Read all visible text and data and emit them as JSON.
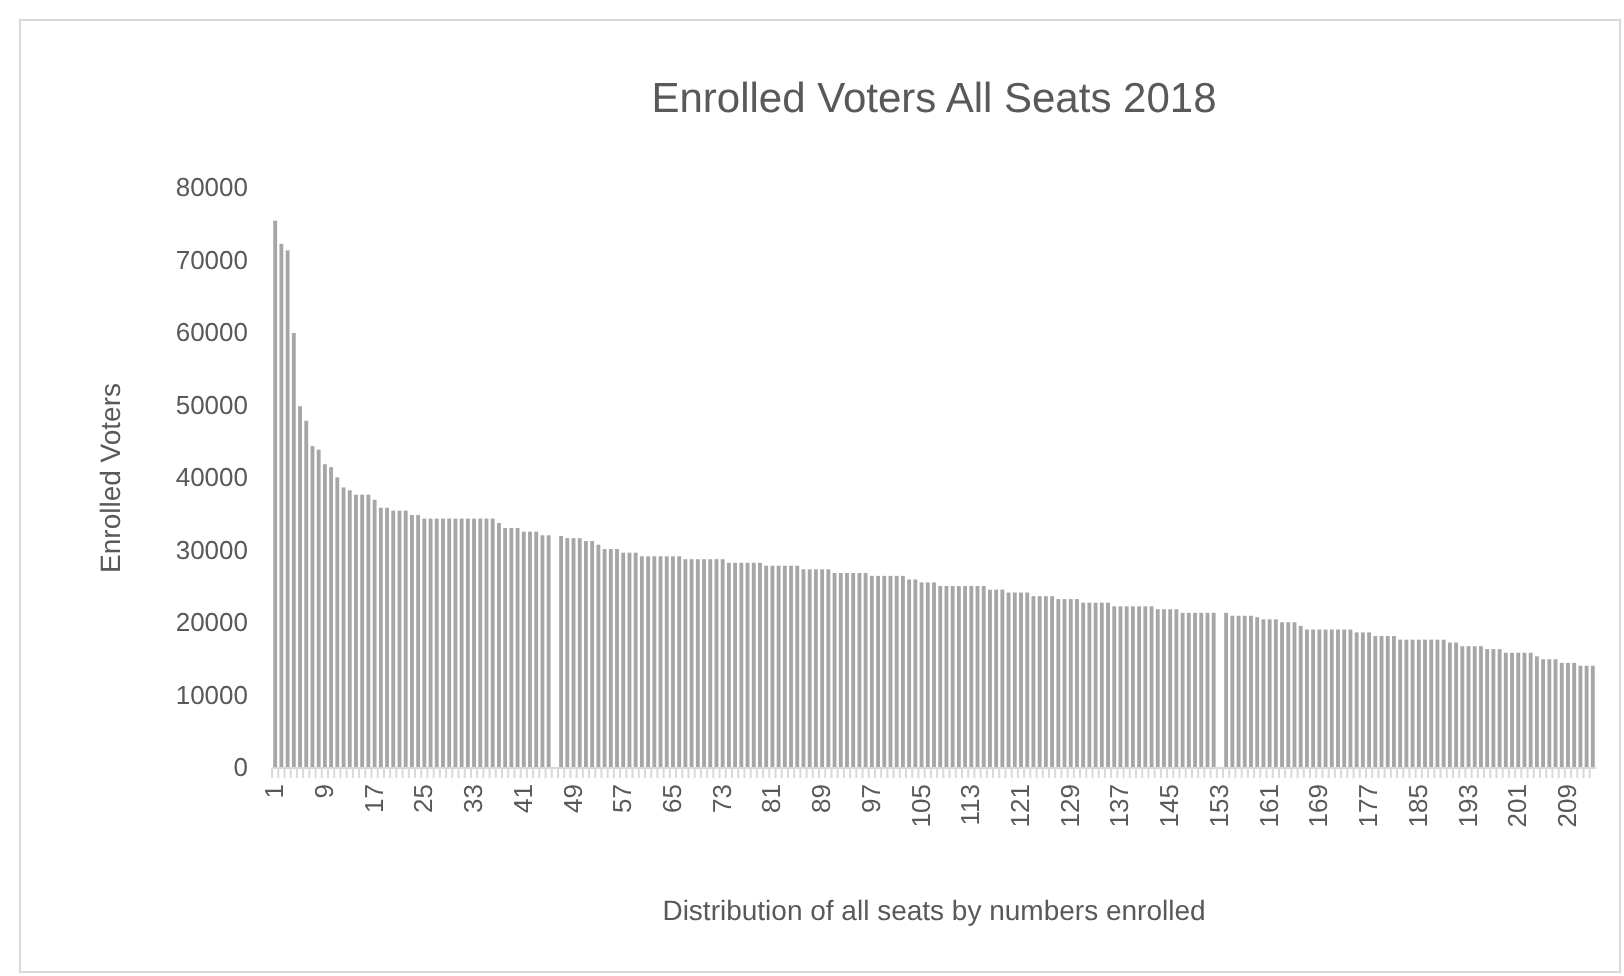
{
  "chart_data": {
    "type": "bar",
    "title": "Enrolled Voters All Seats 2018",
    "xlabel": "Distribution of all seats by numbers enrolled",
    "ylabel": "Enrolled Voters",
    "categories": [
      "1",
      null,
      null,
      null,
      null,
      null,
      null,
      null,
      "9",
      null,
      null,
      null,
      null,
      null,
      null,
      null,
      "17",
      null,
      null,
      null,
      null,
      null,
      null,
      null,
      "25",
      null,
      null,
      null,
      null,
      null,
      null,
      null,
      "33",
      null,
      null,
      null,
      null,
      null,
      null,
      null,
      "41",
      null,
      null,
      null,
      null,
      null,
      null,
      null,
      "49",
      null,
      null,
      null,
      null,
      null,
      null,
      null,
      "57",
      null,
      null,
      null,
      null,
      null,
      null,
      null,
      "65",
      null,
      null,
      null,
      null,
      null,
      null,
      null,
      "73",
      null,
      null,
      null,
      null,
      null,
      null,
      null,
      "81",
      null,
      null,
      null,
      null,
      null,
      null,
      null,
      "89",
      null,
      null,
      null,
      null,
      null,
      null,
      null,
      "97",
      null,
      null,
      null,
      null,
      null,
      null,
      null,
      "105",
      null,
      null,
      null,
      null,
      null,
      null,
      null,
      "113",
      null,
      null,
      null,
      null,
      null,
      null,
      null,
      "121",
      null,
      null,
      null,
      null,
      null,
      null,
      null,
      "129",
      null,
      null,
      null,
      null,
      null,
      null,
      null,
      "137",
      null,
      null,
      null,
      null,
      null,
      null,
      null,
      "145",
      null,
      null,
      null,
      null,
      null,
      null,
      null,
      "153",
      null,
      null,
      null,
      null,
      null,
      null,
      null,
      "161",
      null,
      null,
      null,
      null,
      null,
      null,
      null,
      "169",
      null,
      null,
      null,
      null,
      null,
      null,
      null,
      "177",
      null,
      null,
      null,
      null,
      null,
      null,
      null,
      "185",
      null,
      null,
      null,
      null,
      null,
      null,
      null,
      "193",
      null,
      null,
      null,
      null,
      null,
      null,
      null,
      "201",
      null,
      null,
      null,
      null,
      null,
      null,
      null,
      "209",
      null,
      null,
      null,
      null
    ],
    "values": [
      75500,
      72300,
      71400,
      60000,
      49900,
      47900,
      44400,
      43900,
      41900,
      41500,
      40100,
      38700,
      38300,
      37700,
      37700,
      37700,
      37000,
      35900,
      35900,
      35500,
      35500,
      35500,
      34900,
      34900,
      34400,
      34400,
      34400,
      34400,
      34400,
      34400,
      34400,
      34400,
      34400,
      34400,
      34400,
      34400,
      33800,
      33100,
      33100,
      33100,
      32600,
      32600,
      32600,
      32100,
      32100,
      null,
      32000,
      31700,
      31700,
      31700,
      31300,
      31300,
      30800,
      30200,
      30200,
      30200,
      29700,
      29700,
      29700,
      29200,
      29200,
      29200,
      29200,
      29200,
      29200,
      29200,
      28800,
      28800,
      28800,
      28800,
      28800,
      28800,
      28800,
      28300,
      28300,
      28300,
      28300,
      28300,
      28300,
      27900,
      27900,
      27900,
      27900,
      27900,
      27900,
      27400,
      27400,
      27400,
      27400,
      27400,
      26900,
      26900,
      26900,
      26900,
      26900,
      26900,
      26500,
      26500,
      26500,
      26500,
      26500,
      26500,
      26000,
      26000,
      25600,
      25600,
      25600,
      25100,
      25100,
      25100,
      25100,
      25100,
      25100,
      25100,
      25100,
      24600,
      24600,
      24600,
      24200,
      24200,
      24200,
      24200,
      23700,
      23700,
      23700,
      23700,
      23300,
      23300,
      23300,
      23300,
      22800,
      22800,
      22800,
      22800,
      22800,
      22300,
      22300,
      22300,
      22300,
      22300,
      22300,
      22300,
      21900,
      21900,
      21900,
      21900,
      21400,
      21400,
      21400,
      21400,
      21400,
      21400,
      null,
      21400,
      21000,
      21000,
      21000,
      21000,
      20800,
      20500,
      20500,
      20500,
      20100,
      20100,
      20100,
      19600,
      19100,
      19100,
      19100,
      19100,
      19100,
      19100,
      19100,
      19100,
      18700,
      18700,
      18700,
      18200,
      18200,
      18200,
      18200,
      17700,
      17700,
      17700,
      17700,
      17700,
      17700,
      17700,
      17700,
      17300,
      17300,
      16800,
      16800,
      16800,
      16800,
      16400,
      16400,
      16400,
      15900,
      15900,
      15900,
      15900,
      15900,
      15400,
      15000,
      15000,
      15000,
      14500,
      14500,
      14500,
      14100,
      14100,
      14100
    ],
    "color": "#a6a6a6",
    "ylim": [
      0,
      80000
    ],
    "yticks": [
      0,
      10000,
      20000,
      30000,
      40000,
      50000,
      60000,
      70000,
      80000
    ],
    "grid": false
  }
}
